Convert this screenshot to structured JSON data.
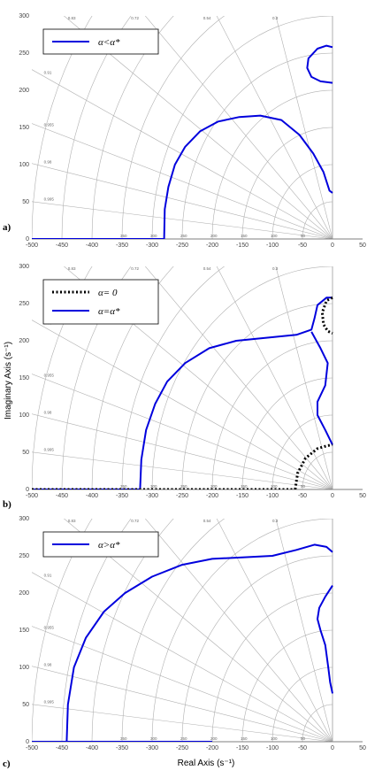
{
  "xlabel": "Real Axis (s⁻¹)",
  "ylabel": "Imaginary Axis (s⁻¹)",
  "chart_data": [
    {
      "type": "line",
      "panel_label": "a)",
      "xlim": [
        -500,
        50
      ],
      "ylim": [
        0,
        300
      ],
      "x_ticks": [
        -500,
        -450,
        -400,
        -350,
        -300,
        -250,
        -200,
        -150,
        -100,
        -50,
        0,
        50
      ],
      "y_ticks": [
        0,
        50,
        100,
        150,
        200,
        250,
        300
      ],
      "grid": "s-plane damping/frequency grid",
      "damping_labels": [
        "0.83",
        "0.72",
        "0.54",
        "0.3",
        "0.91",
        "0.955",
        "0.98",
        "0.995"
      ],
      "frequency_labels": [
        "350",
        "300",
        "250",
        "200",
        "150",
        "100",
        "50"
      ],
      "legend": [
        {
          "label": "α<α*",
          "style": "solid",
          "color": "#0000dd"
        }
      ],
      "series": [
        {
          "name": "α<α*",
          "color": "#0000dd",
          "dash": "solid",
          "points": [
            [
              -500,
              0
            ],
            [
              -280,
              0
            ]
          ]
        },
        {
          "name": "α<α*",
          "color": "#0000dd",
          "dash": "solid",
          "points": [
            [
              -280,
              0
            ],
            [
              -279,
              40
            ],
            [
              -273,
              70
            ],
            [
              -262,
              100
            ],
            [
              -245,
              124
            ],
            [
              -220,
              145
            ],
            [
              -190,
              158
            ],
            [
              -155,
              164
            ],
            [
              -120,
              166
            ],
            [
              -85,
              160
            ],
            [
              -55,
              140
            ],
            [
              -32,
              115
            ],
            [
              -15,
              90
            ],
            [
              -5,
              65
            ],
            [
              0,
              62
            ]
          ]
        },
        {
          "name": "α<α*",
          "color": "#0000dd",
          "dash": "solid",
          "points": [
            [
              0,
              258
            ],
            [
              -10,
              260
            ],
            [
              -25,
              256
            ],
            [
              -40,
              243
            ],
            [
              -42,
              230
            ],
            [
              -35,
              218
            ],
            [
              -20,
              212
            ],
            [
              0,
              210
            ]
          ]
        }
      ]
    },
    {
      "type": "line",
      "panel_label": "b)",
      "xlim": [
        -500,
        50
      ],
      "ylim": [
        0,
        300
      ],
      "x_ticks": [
        -500,
        -450,
        -400,
        -350,
        -300,
        -250,
        -200,
        -150,
        -100,
        -50,
        0,
        50
      ],
      "y_ticks": [
        0,
        50,
        100,
        150,
        200,
        250,
        300
      ],
      "grid": "s-plane damping/frequency grid",
      "damping_labels": [
        "0.83",
        "0.72",
        "0.54",
        "0.3",
        "0.91",
        "0.955",
        "0.98",
        "0.995"
      ],
      "frequency_labels": [
        "350",
        "300",
        "250",
        "200",
        "150",
        "100",
        "50"
      ],
      "legend": [
        {
          "label": "α= 0",
          "style": "dotted",
          "color": "#000000"
        },
        {
          "label": "α=α*",
          "style": "solid",
          "color": "#0000dd"
        }
      ],
      "series": [
        {
          "name": "α=α*",
          "color": "#0000dd",
          "dash": "solid",
          "points": [
            [
              -500,
              0
            ],
            [
              -320,
              0
            ]
          ]
        },
        {
          "name": "α=α*",
          "color": "#0000dd",
          "dash": "solid",
          "points": [
            [
              -320,
              0
            ],
            [
              -318,
              40
            ],
            [
              -310,
              80
            ],
            [
              -295,
              115
            ],
            [
              -275,
              145
            ],
            [
              -245,
              170
            ],
            [
              -205,
              190
            ],
            [
              -160,
              200
            ],
            [
              -110,
              204
            ],
            [
              -60,
              208
            ],
            [
              -35,
              215
            ],
            [
              -30,
              230
            ],
            [
              -25,
              248
            ],
            [
              -10,
              258
            ],
            [
              0,
              258
            ]
          ]
        },
        {
          "name": "α=α*",
          "color": "#0000dd",
          "dash": "solid",
          "points": [
            [
              -35,
              212
            ],
            [
              -20,
              190
            ],
            [
              -8,
              170
            ],
            [
              -12,
              140
            ],
            [
              -25,
              118
            ],
            [
              -25,
              100
            ],
            [
              -12,
              80
            ],
            [
              -3,
              65
            ],
            [
              0,
              60
            ]
          ]
        },
        {
          "name": "α= 0",
          "color": "#000000",
          "dash": "dotted",
          "points": [
            [
              -500,
              0
            ],
            [
              -62,
              0
            ]
          ]
        },
        {
          "name": "α= 0",
          "color": "#000000",
          "dash": "dotted",
          "points": [
            [
              -62,
              0
            ],
            [
              -58,
              22
            ],
            [
              -45,
              42
            ],
            [
              -25,
              55
            ],
            [
              -8,
              59
            ],
            [
              0,
              60
            ]
          ]
        },
        {
          "name": "α= 0",
          "color": "#000000",
          "dash": "dotted",
          "points": [
            [
              0,
              258
            ],
            [
              -10,
              254
            ],
            [
              -17,
              238
            ],
            [
              -15,
              222
            ],
            [
              -8,
              213
            ],
            [
              0,
              210
            ]
          ]
        }
      ]
    },
    {
      "type": "line",
      "panel_label": "c)",
      "xlim": [
        -500,
        50
      ],
      "ylim": [
        0,
        300
      ],
      "x_ticks": [
        -500,
        -450,
        -400,
        -350,
        -300,
        -250,
        -200,
        -150,
        -100,
        -50,
        0,
        50
      ],
      "y_ticks": [
        0,
        50,
        100,
        150,
        200,
        250,
        300
      ],
      "grid": "s-plane damping/frequency grid",
      "damping_labels": [
        "0.83",
        "0.72",
        "0.54",
        "0.3",
        "0.91",
        "0.955",
        "0.98",
        "0.995"
      ],
      "frequency_labels": [
        "350",
        "300",
        "250",
        "200",
        "150",
        "100",
        "50"
      ],
      "legend": [
        {
          "label": "α>α*",
          "style": "solid",
          "color": "#0000dd"
        }
      ],
      "series": [
        {
          "name": "α>α*",
          "color": "#0000dd",
          "dash": "solid",
          "points": [
            [
              -500,
              0
            ],
            [
              -200,
              0
            ]
          ]
        },
        {
          "name": "α>α*",
          "color": "#0000dd",
          "dash": "solid",
          "points": [
            [
              -442,
              0
            ],
            [
              -440,
              50
            ],
            [
              -430,
              100
            ],
            [
              -410,
              140
            ],
            [
              -380,
              175
            ],
            [
              -345,
              200
            ],
            [
              -300,
              222
            ],
            [
              -250,
              238
            ],
            [
              -200,
              246
            ],
            [
              -150,
              248
            ],
            [
              -100,
              250
            ],
            [
              -60,
              258
            ],
            [
              -30,
              265
            ],
            [
              -10,
              262
            ],
            [
              0,
              255
            ]
          ]
        },
        {
          "name": "α>α*",
          "color": "#0000dd",
          "dash": "solid",
          "points": [
            [
              0,
              210
            ],
            [
              -12,
              195
            ],
            [
              -22,
              180
            ],
            [
              -25,
              165
            ],
            [
              -20,
              150
            ],
            [
              -12,
              130
            ],
            [
              -7,
              100
            ],
            [
              -4,
              80
            ],
            [
              0,
              65
            ]
          ]
        }
      ]
    }
  ]
}
